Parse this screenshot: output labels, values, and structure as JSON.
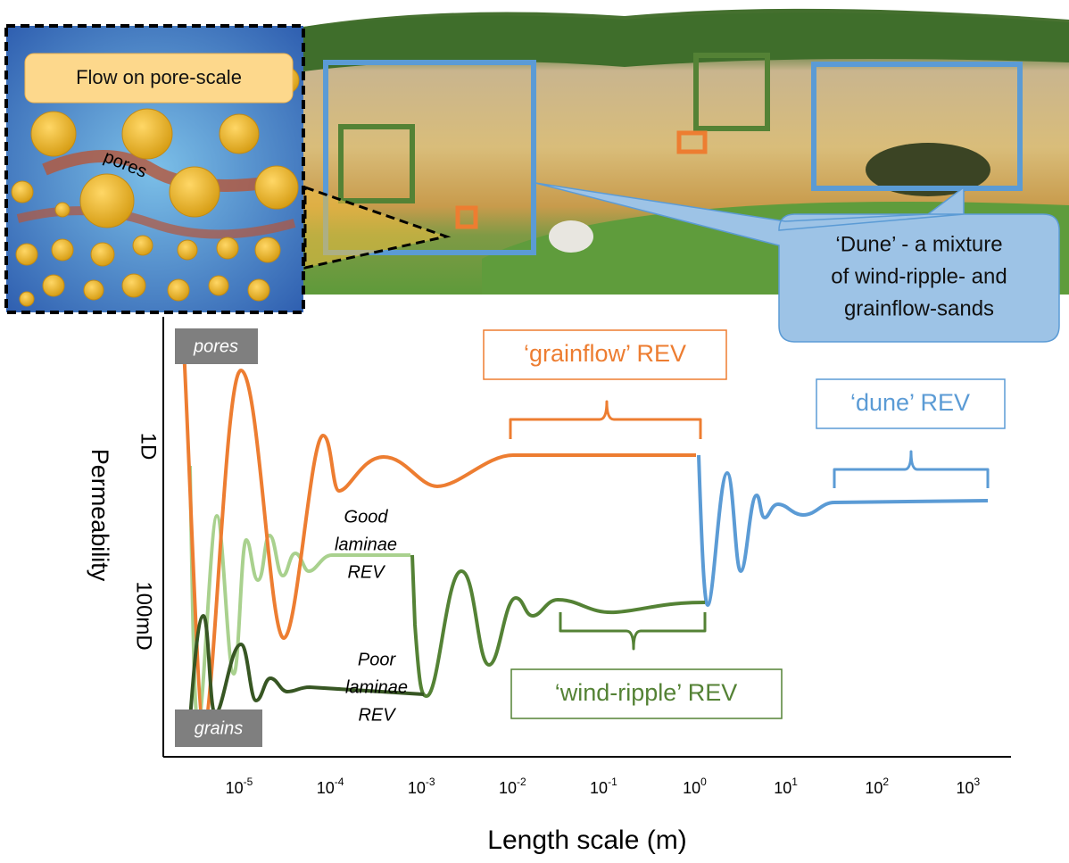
{
  "inset": {
    "title": "Flow on pore-scale",
    "pores_label": "pores"
  },
  "callout": {
    "lines": [
      "‘Dune’ - a mixture",
      "of wind-ripple- and",
      "grainflow-sands"
    ]
  },
  "plot": {
    "y_axis": {
      "title": "Permeability",
      "labels": [
        "1D",
        "100mD"
      ]
    },
    "x_axis": {
      "title": "Length scale (m)",
      "ticks": [
        {
          "base": "10",
          "exp": "-5"
        },
        {
          "base": "10",
          "exp": "-4"
        },
        {
          "base": "10",
          "exp": "-3"
        },
        {
          "base": "10",
          "exp": "-2"
        },
        {
          "base": "10",
          "exp": "-1"
        },
        {
          "base": "10",
          "exp": "0"
        },
        {
          "base": "10",
          "exp": "1"
        },
        {
          "base": "10",
          "exp": "2"
        },
        {
          "base": "10",
          "exp": "3"
        }
      ]
    },
    "end_labels": {
      "top": "pores",
      "bottom": "grains"
    },
    "rev_labels": {
      "grainflow": "‘grainflow’ REV",
      "dune": "‘dune’ REV",
      "wind_ripple": "‘wind-ripple’ REV"
    },
    "laminae": {
      "good": [
        "Good",
        "laminae",
        "REV"
      ],
      "poor": [
        "Poor",
        "laminae",
        "REV"
      ]
    }
  }
}
